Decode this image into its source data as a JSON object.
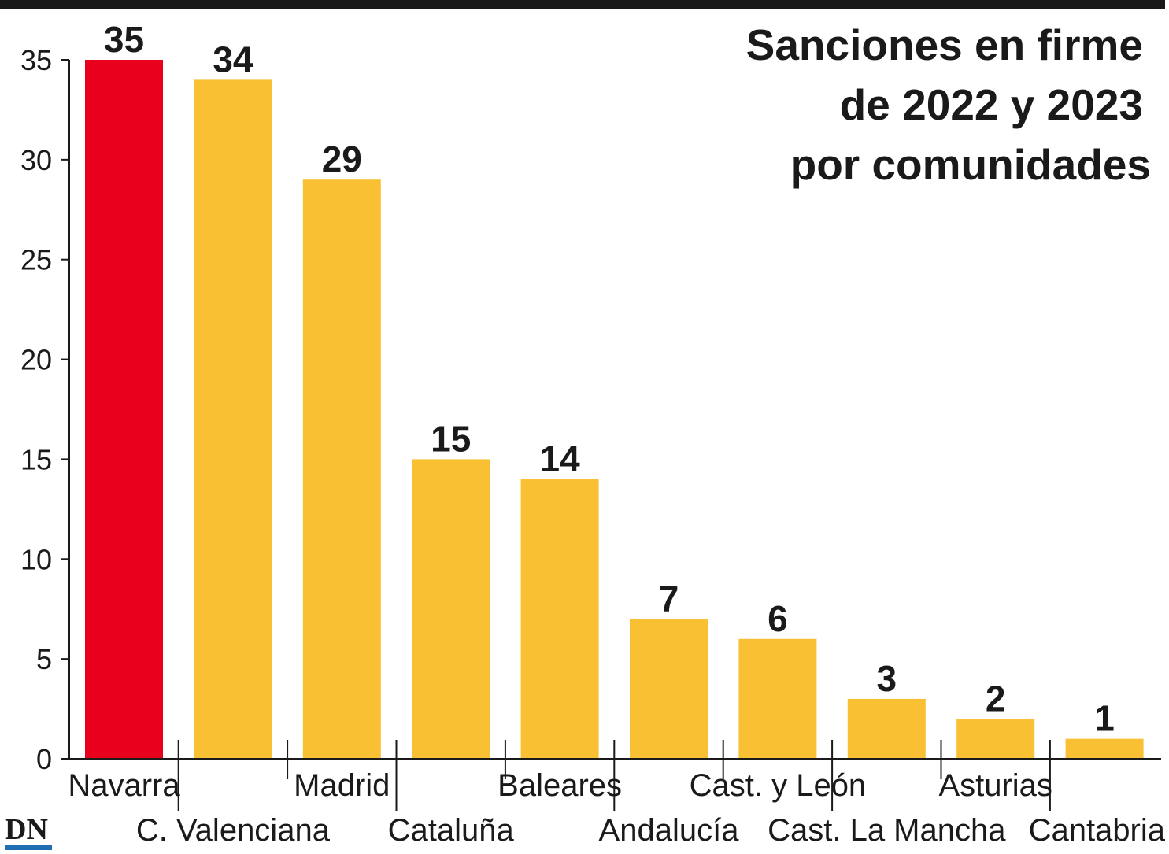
{
  "chart_data": {
    "type": "bar",
    "title": [
      "Sanciones en firme",
      "de 2022 y 2023",
      "por comunidades"
    ],
    "categories": [
      "Navarra",
      "C. Valenciana",
      "Madrid",
      "Cataluña",
      "Baleares",
      "Andalucía",
      "Cast. y León",
      "Cast. La Mancha",
      "Asturias",
      "Cantabria"
    ],
    "values": [
      35,
      34,
      29,
      15,
      14,
      7,
      6,
      3,
      2,
      1
    ],
    "ylim": [
      0,
      35
    ],
    "yticks": [
      0,
      5,
      10,
      15,
      20,
      25,
      30,
      35
    ],
    "xlabel": "",
    "ylabel": "",
    "grid": false,
    "legend": "none",
    "highlight_index": 0,
    "colors": {
      "highlight": "#e8001c",
      "bar": "#f9c033",
      "axis": "#1a1a1a",
      "logo_accent": "#1f6fb5"
    }
  },
  "logo": {
    "text": "DN"
  }
}
